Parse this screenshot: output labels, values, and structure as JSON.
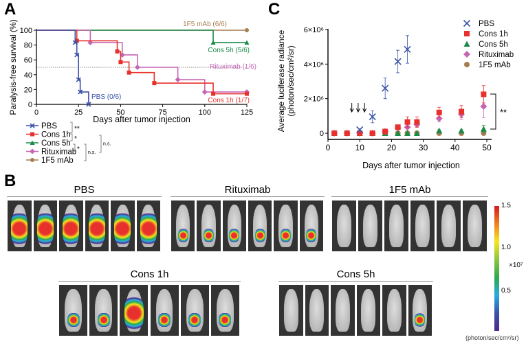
{
  "panels": {
    "a": "A",
    "b": "B",
    "c": "C"
  },
  "colors": {
    "PBS": "#3a52a8",
    "Cons 1h": "#e8312d",
    "Cons 5h": "#1a8a47",
    "Rituximab": "#c566b4",
    "1F5 mAb": "#a67c52"
  },
  "chart_data": [
    {
      "type": "line",
      "title": "",
      "xlabel": "Days after tumor injection",
      "ylabel": "Paralysis-free survival (%)",
      "xlim": [
        0,
        125
      ],
      "ylim": [
        0,
        100
      ],
      "xticks": [
        0,
        25,
        50,
        75,
        100,
        125
      ],
      "yticks": [
        0,
        20,
        40,
        60,
        80,
        100
      ],
      "reference_line": 50,
      "series": [
        {
          "name": "PBS",
          "marker": "x",
          "label": "PBS (0/6)",
          "steps": [
            [
              0,
              100
            ],
            [
              23,
              83.3
            ],
            [
              24,
              66.7
            ],
            [
              25,
              33.3
            ],
            [
              26,
              16.7
            ],
            [
              31,
              0
            ]
          ]
        },
        {
          "name": "Cons 1h",
          "marker": "square",
          "label": "Cons 1h (1/7)",
          "steps": [
            [
              0,
              100
            ],
            [
              24,
              85.7
            ],
            [
              48,
              71.4
            ],
            [
              50,
              57.1
            ],
            [
              55,
              42.9
            ],
            [
              70,
              28.6
            ],
            [
              105,
              14.3
            ],
            [
              125,
              14.3
            ]
          ]
        },
        {
          "name": "Cons 5h",
          "marker": "triangle",
          "label": "Cons 5h (5/6)",
          "steps": [
            [
              0,
              100
            ],
            [
              105,
              83.3
            ],
            [
              125,
              83.3
            ]
          ]
        },
        {
          "name": "Rituximab",
          "marker": "diamond",
          "label": "Rituximab (1/6)",
          "steps": [
            [
              0,
              100
            ],
            [
              32,
              83.3
            ],
            [
              51,
              66.7
            ],
            [
              60,
              50
            ],
            [
              84,
              33.3
            ],
            [
              100,
              16.7
            ],
            [
              125,
              16.7
            ]
          ]
        },
        {
          "name": "1F5 mAb",
          "marker": "circle",
          "label": "1F5 mAb (6/6)",
          "steps": [
            [
              0,
              100
            ],
            [
              125,
              100
            ]
          ]
        }
      ],
      "legend": [
        "PBS",
        "Cons 1h",
        "Cons 5h",
        "Rituximab",
        "1F5 mAb"
      ],
      "significance": [
        {
          "pair": [
            "PBS",
            "Cons 1h"
          ],
          "label": "**"
        },
        {
          "pair": [
            "Cons 1h",
            "Cons 5h"
          ],
          "label": "*"
        },
        {
          "pair": [
            "Cons 5h",
            "Rituximab"
          ],
          "label": "*"
        },
        {
          "pair": [
            "Rituximab",
            "1F5 mAb"
          ],
          "label": "n.s."
        },
        {
          "pair": [
            "Cons 5h",
            "1F5 mAb"
          ],
          "label": "n.s."
        }
      ]
    },
    {
      "type": "scatter",
      "xlabel": "Days after tumor injection",
      "ylabel": "Average luciferase radiance",
      "ylabel2": "(photon/sec/cm²/sr)",
      "xlim": [
        0,
        52
      ],
      "ylim": [
        0,
        6000000
      ],
      "xticks": [
        0,
        10,
        20,
        30,
        40,
        50
      ],
      "yticks": [
        {
          "v": 0,
          "t": "0"
        },
        {
          "v": 2000000,
          "t": "2×10⁶"
        },
        {
          "v": 4000000,
          "t": "4×10⁶"
        },
        {
          "v": 6000000,
          "t": "6×10⁶"
        }
      ],
      "arrows_days": [
        7.5,
        9.5,
        11.5
      ],
      "significance": "**",
      "series": [
        {
          "name": "1F5 mAb",
          "marker": "circle",
          "points": [
            [
              2,
              0,
              0
            ],
            [
              6,
              0,
              0
            ],
            [
              10,
              0,
              0
            ],
            [
              14,
              0,
              0
            ],
            [
              18,
              0,
              0
            ],
            [
              22,
              0,
              0
            ],
            [
              25,
              0,
              0
            ],
            [
              28,
              0,
              0
            ],
            [
              35,
              0,
              0
            ],
            [
              42,
              0,
              0
            ],
            [
              49,
              0,
              0
            ]
          ]
        },
        {
          "name": "Cons 5h",
          "marker": "triangle",
          "points": [
            [
              2,
              0,
              0
            ],
            [
              6,
              0,
              0
            ],
            [
              10,
              0,
              0
            ],
            [
              14,
              0,
              0
            ],
            [
              18,
              0,
              0
            ],
            [
              22,
              0,
              0
            ],
            [
              25,
              0,
              0
            ],
            [
              28,
              0,
              0
            ],
            [
              35,
              150000,
              50000
            ],
            [
              42,
              150000,
              50000
            ],
            [
              49,
              250000,
              200000
            ]
          ]
        },
        {
          "name": "Rituximab",
          "marker": "diamond",
          "points": [
            [
              2,
              0,
              0
            ],
            [
              6,
              0,
              0
            ],
            [
              10,
              0,
              0
            ],
            [
              14,
              0,
              0
            ],
            [
              18,
              100000,
              0
            ],
            [
              22,
              300000,
              50000
            ],
            [
              25,
              350000,
              50000
            ],
            [
              28,
              500000,
              150000
            ],
            [
              35,
              850000,
              200000
            ],
            [
              42,
              1100000,
              300000
            ],
            [
              49,
              1550000,
              650000
            ]
          ]
        },
        {
          "name": "Cons 1h",
          "marker": "square",
          "points": [
            [
              2,
              0,
              0
            ],
            [
              6,
              0,
              0
            ],
            [
              10,
              0,
              0
            ],
            [
              14,
              0,
              0
            ],
            [
              18,
              100000,
              50000
            ],
            [
              22,
              350000,
              100000
            ],
            [
              25,
              650000,
              300000
            ],
            [
              28,
              650000,
              300000
            ],
            [
              35,
              1200000,
              300000
            ],
            [
              42,
              1250000,
              350000
            ],
            [
              49,
              2250000,
              500000
            ]
          ]
        },
        {
          "name": "PBS",
          "marker": "x",
          "points": [
            [
              10,
              200000,
              50000
            ],
            [
              14,
              950000,
              350000
            ],
            [
              18,
              2600000,
              600000
            ],
            [
              22,
              4150000,
              650000
            ],
            [
              25,
              4850000,
              800000
            ]
          ]
        }
      ],
      "legend": [
        "PBS",
        "Cons 1h",
        "Cons 5h",
        "Rituximab",
        "1F5 mAb"
      ]
    }
  ],
  "imaging": {
    "groups": [
      {
        "name": "PBS",
        "signal": [
          1,
          1,
          1,
          0.9,
          1,
          1
        ]
      },
      {
        "name": "Rituximab",
        "signal": [
          0.3,
          0.2,
          0.6,
          0.6,
          0.4,
          0.3
        ]
      },
      {
        "name": "1F5 mAb",
        "signal": [
          0,
          0,
          0,
          0,
          0,
          0
        ]
      },
      {
        "name": "Cons 1h",
        "signal": [
          0.5,
          0.5,
          0.9,
          0.3,
          0.6,
          0.3
        ]
      },
      {
        "name": "Cons 5h",
        "signal": [
          0,
          0,
          0,
          0,
          0,
          0.3
        ]
      }
    ],
    "colorbar": {
      "ticks": [
        "1.5",
        "1.0",
        "0.5"
      ],
      "multiplier": "×10⁷",
      "unit": "(photon/sec/cm²/sr)"
    }
  }
}
